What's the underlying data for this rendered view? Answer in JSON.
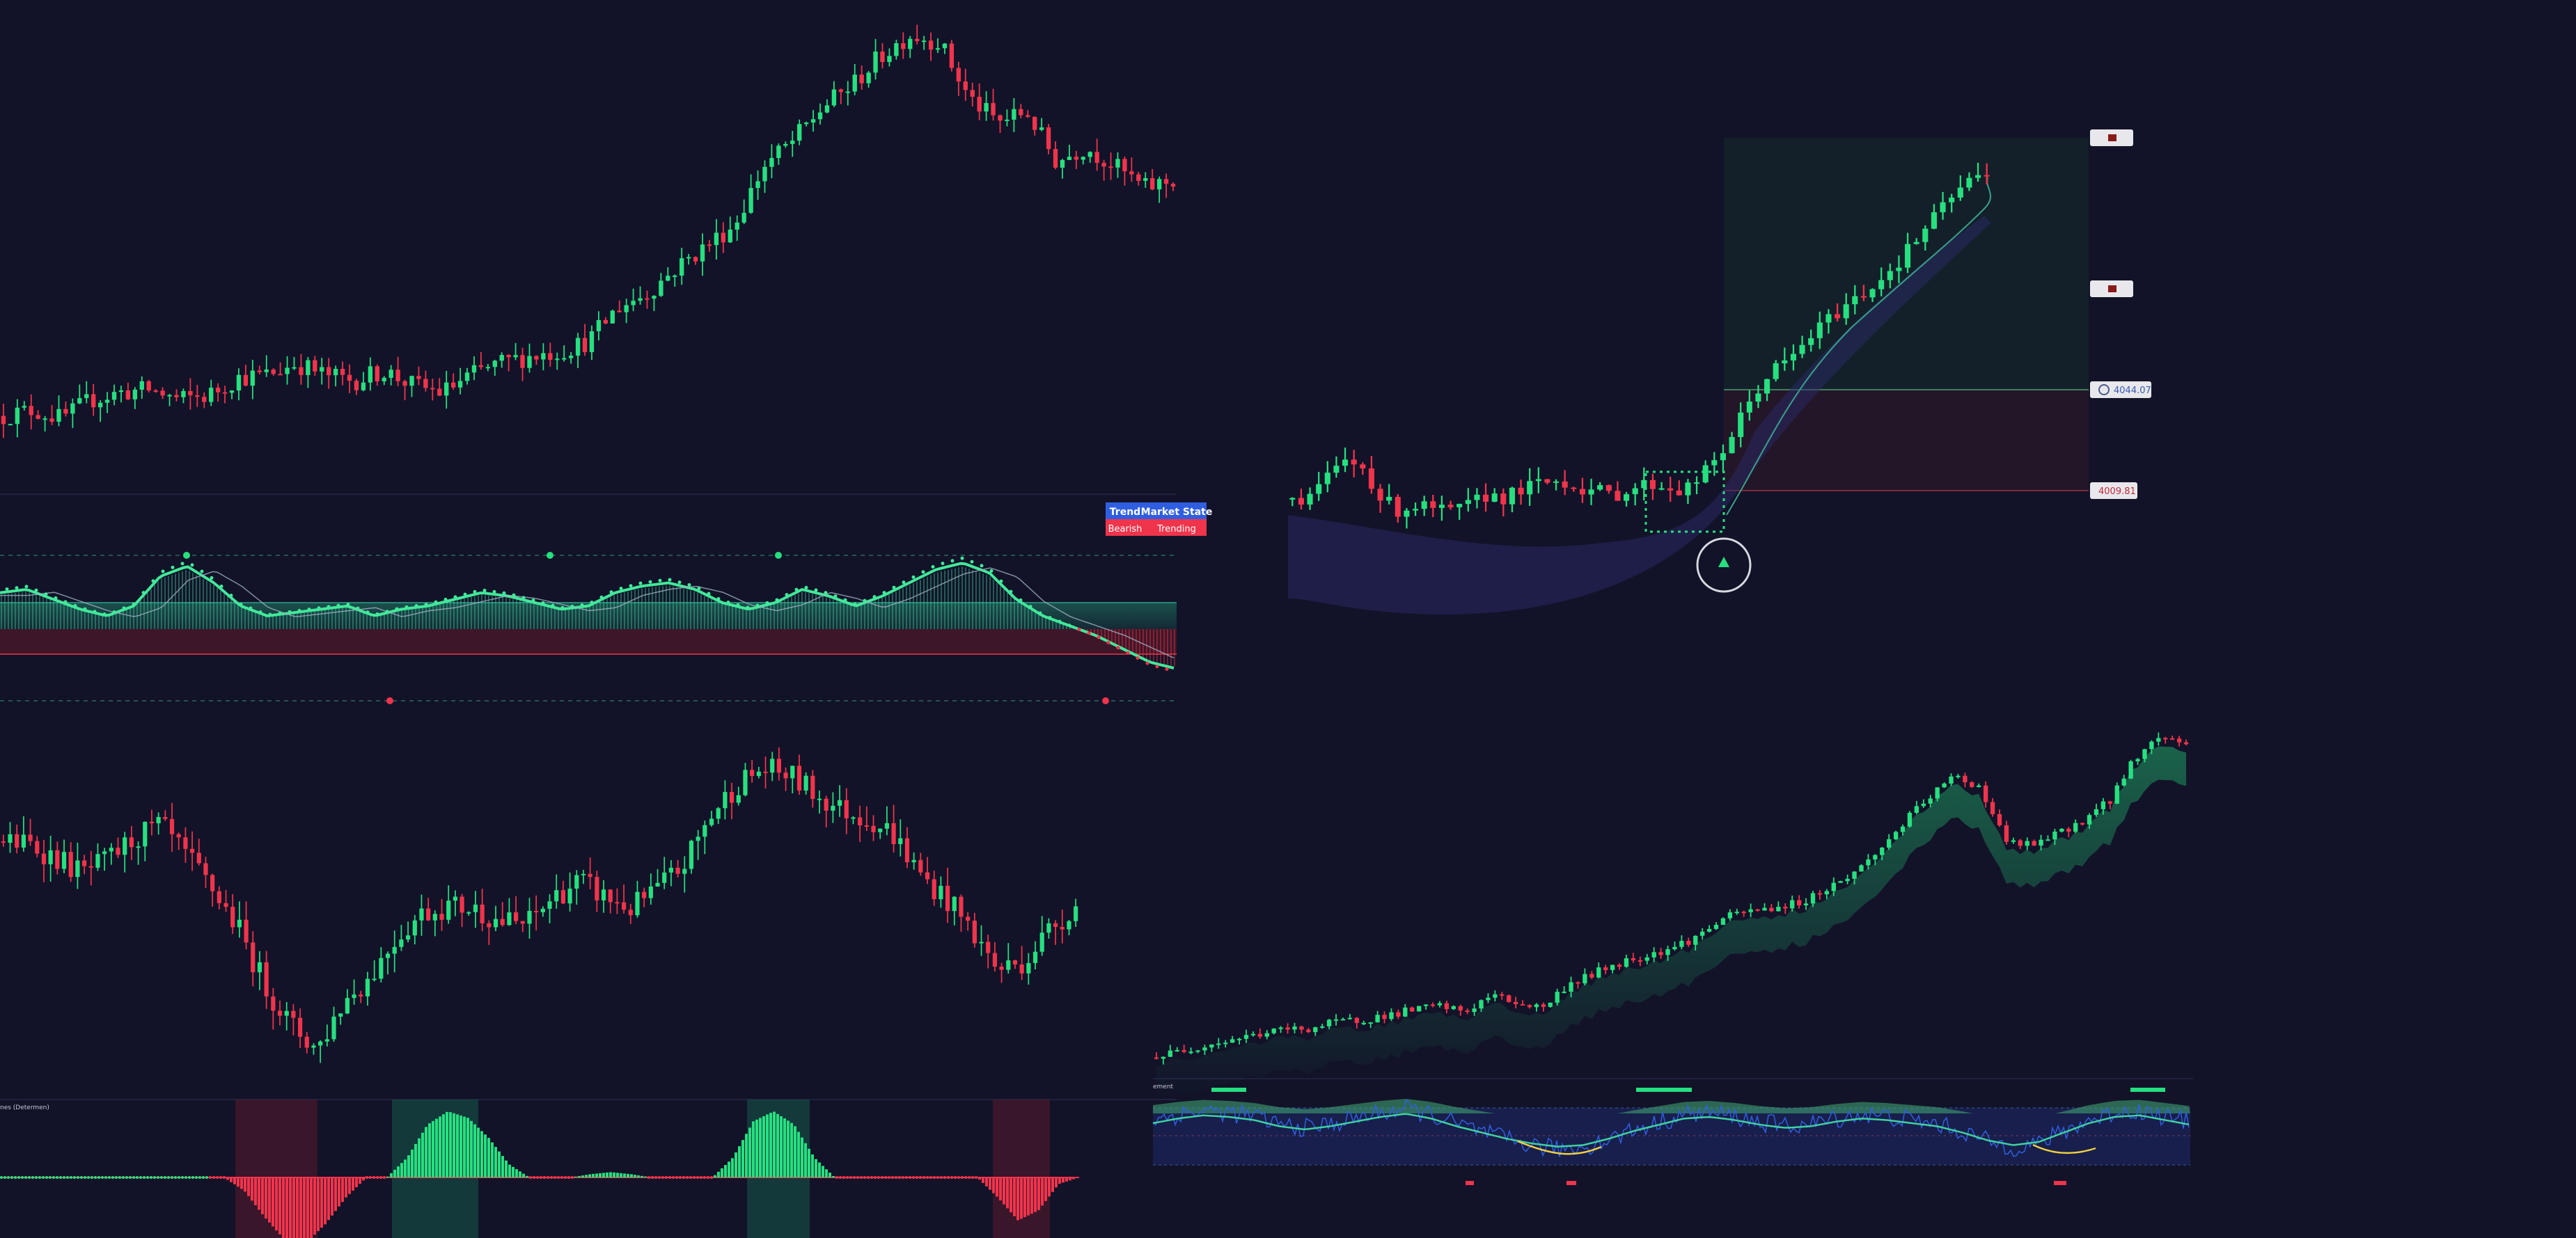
{
  "theme": {
    "background": "#121328",
    "bull": "#26e07f",
    "bear": "#f0344b",
    "trend_fill": "#1a5a52",
    "bear_fill": "#5a1a2a",
    "blue": "#2f5fe0",
    "gold": "#f0d040",
    "cloud": "#2a2a6a"
  },
  "panels": {
    "top_left_table": {
      "headers": [
        "Trend",
        "Market State"
      ],
      "values": [
        "Bearish",
        "Trending"
      ]
    },
    "right_top_levels": {
      "entry": "4044.07",
      "stop": "4009.81"
    },
    "bottom_left_caption": "nes (Determen)",
    "bottom_right_caption": "ement"
  },
  "chart_data": [
    {
      "id": "top-left-price",
      "type": "candlestick",
      "trend": [
        44,
        48,
        42,
        55,
        60,
        62,
        55,
        58,
        70,
        72,
        80,
        72,
        68,
        75,
        65,
        60,
        72,
        80,
        85,
        88,
        95,
        118,
        128,
        145,
        160,
        175,
        215,
        232,
        255,
        270,
        290,
        305,
        300,
        262,
        245,
        252,
        218,
        228,
        215,
        200,
        205
      ],
      "direction_bias": "up then down"
    },
    {
      "id": "top-left-oscillator",
      "type": "line",
      "series": [
        {
          "name": "",
          "values": [
            0.55,
            0.6,
            0.45,
            0.3,
            0.2,
            0.35,
            0.8,
            0.95,
            0.7,
            0.35,
            0.2,
            0.25,
            0.3,
            0.35,
            0.2,
            0.3,
            0.35,
            0.45,
            0.55,
            0.5,
            0.4,
            0.3,
            0.35,
            0.55,
            0.65,
            0.7,
            0.6,
            0.4,
            0.3,
            0.4,
            0.6,
            0.5,
            0.35,
            0.5,
            0.7,
            0.9,
            1.0,
            0.85,
            0.45,
            0.2,
            0.05,
            -0.1,
            -0.3,
            -0.5,
            -0.6
          ]
        }
      ]
    },
    {
      "id": "bottom-left-price",
      "type": "candlestick",
      "trend": [
        70,
        68,
        60,
        50,
        58,
        72,
        80,
        60,
        40,
        15,
        -20,
        -45,
        -60,
        -30,
        -15,
        10,
        25,
        30,
        28,
        20,
        18,
        35,
        45,
        35,
        28,
        40,
        55,
        85,
        105,
        115,
        112,
        100,
        90,
        85,
        75,
        50,
        35,
        15,
        -10,
        -5,
        15,
        30
      ]
    },
    {
      "id": "bottom-left-histogram",
      "type": "area",
      "series": [
        {
          "name": "",
          "values": [
            0,
            0,
            0,
            0,
            0,
            0,
            0,
            0,
            0,
            0,
            0,
            0,
            -0.2,
            -0.6,
            -0.95,
            -1.0,
            -0.7,
            -0.3,
            0,
            0,
            0.3,
            0.8,
            1.0,
            0.9,
            0.6,
            0.2,
            0,
            0,
            0,
            0.05,
            0.08,
            0.05,
            0,
            0,
            0,
            0,
            0.3,
            0.85,
            1.0,
            0.8,
            0.3,
            0,
            0,
            0,
            0,
            0,
            0,
            0,
            0,
            -0.3,
            -0.65,
            -0.5,
            -0.1,
            0
          ]
        }
      ]
    },
    {
      "id": "right-top-price",
      "type": "candlestick",
      "trend": [
        40,
        45,
        60,
        75,
        70,
        40,
        30,
        35,
        30,
        28,
        35,
        45,
        42,
        50,
        55,
        58,
        52,
        48,
        44,
        50,
        55,
        52,
        48,
        62,
        80,
        110,
        140,
        160,
        170,
        190,
        205,
        220,
        230,
        245,
        260,
        280,
        300,
        320,
        335,
        345
      ]
    },
    {
      "id": "right-bottom-price",
      "type": "candlestick",
      "trend": [
        10,
        20,
        28,
        35,
        42,
        48,
        50,
        58,
        62,
        68,
        75,
        80,
        72,
        95,
        85,
        78,
        110,
        125,
        140,
        150,
        160,
        175,
        200,
        210,
        215,
        222,
        240,
        260,
        290,
        330,
        365,
        395,
        380,
        305,
        300,
        315,
        335,
        360,
        420,
        450,
        440
      ]
    },
    {
      "id": "right-bottom-oscillator",
      "type": "line",
      "series": [
        {
          "name": "",
          "values": [
            0.4,
            0.55,
            0.65,
            0.6,
            0.5,
            0.3,
            0.2,
            0.3,
            0.45,
            0.6,
            0.7,
            0.55,
            0.3,
            0.1,
            -0.1,
            -0.25,
            -0.35,
            -0.3,
            -0.1,
            0.15,
            0.35,
            0.55,
            0.6,
            0.5,
            0.35,
            0.25,
            0.3,
            0.45,
            0.55,
            0.5,
            0.4,
            0.3,
            0.1,
            -0.15,
            -0.3,
            -0.2,
            0.1,
            0.4,
            0.6,
            0.65,
            0.5,
            0.35
          ]
        }
      ]
    }
  ]
}
